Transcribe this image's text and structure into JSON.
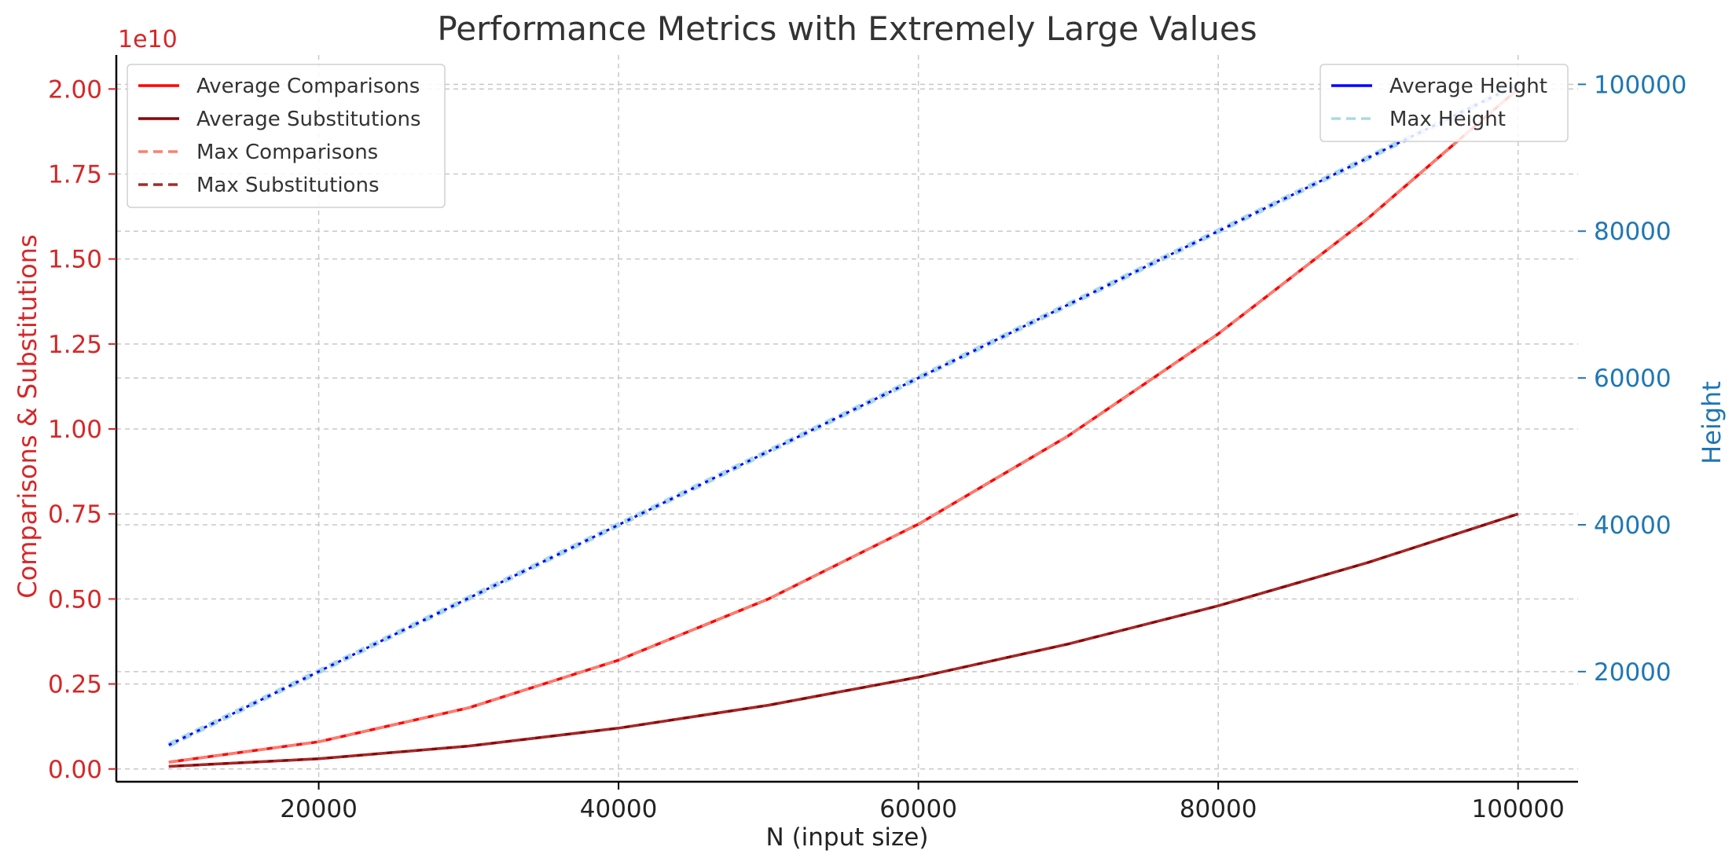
{
  "chart_data": {
    "type": "line",
    "title": "Performance Metrics with Extremely Large Values",
    "xlabel": "N (input size)",
    "ylabel_left": "Comparisons & Substitutions",
    "ylabel_right": "Height",
    "left_axis_multiplier": "1e10",
    "xlim": [
      6500,
      104000
    ],
    "ylim_left": [
      -0.0375,
      2.1
    ],
    "ylim_right": [
      5000,
      104000
    ],
    "x_ticks": [
      20000,
      40000,
      60000,
      80000,
      100000
    ],
    "x_tick_labels": [
      "20000",
      "40000",
      "60000",
      "80000",
      "100000"
    ],
    "y_left_ticks": [
      0,
      0.25,
      0.5,
      0.75,
      1.0,
      1.25,
      1.5,
      1.75,
      2.0
    ],
    "y_left_tick_labels": [
      "0.00",
      "0.25",
      "0.50",
      "0.75",
      "1.00",
      "1.25",
      "1.50",
      "1.75",
      "2.00"
    ],
    "y_right_ticks": [
      20000,
      40000,
      60000,
      80000,
      100000
    ],
    "y_right_tick_labels": [
      "20000",
      "40000",
      "60000",
      "80000",
      "100000"
    ],
    "grid": true,
    "x": [
      10000,
      20000,
      30000,
      40000,
      50000,
      60000,
      70000,
      80000,
      90000,
      100000
    ],
    "series_left": [
      {
        "name": "Average Comparisons",
        "color": "#ff0000",
        "dash": "solid",
        "values": [
          0.02,
          0.08,
          0.18,
          0.32,
          0.5,
          0.72,
          0.98,
          1.28,
          1.62,
          2.0
        ]
      },
      {
        "name": "Average Substitutions",
        "color": "#8b0000",
        "dash": "solid",
        "values": [
          0.0075,
          0.03,
          0.0675,
          0.12,
          0.1875,
          0.27,
          0.3675,
          0.48,
          0.6075,
          0.75
        ]
      },
      {
        "name": "Max Comparisons",
        "color": "#fa8072",
        "dash": "dashed",
        "values": [
          0.02,
          0.08,
          0.18,
          0.32,
          0.5,
          0.72,
          0.98,
          1.28,
          1.62,
          2.0
        ]
      },
      {
        "name": "Max Substitutions",
        "color": "#a52a2a",
        "dash": "dashed",
        "values": [
          0.0075,
          0.03,
          0.0675,
          0.12,
          0.1875,
          0.27,
          0.3675,
          0.48,
          0.6075,
          0.75
        ]
      }
    ],
    "series_right": [
      {
        "name": "Average Height",
        "color": "#0000ff",
        "dash": "solid",
        "values": [
          10000,
          20000,
          30000,
          40000,
          50000,
          60000,
          70000,
          80000,
          90000,
          100000
        ]
      },
      {
        "name": "Max Height",
        "color": "#add8e6",
        "dash": "dashed",
        "values": [
          10000,
          20000,
          30000,
          40000,
          50000,
          60000,
          70000,
          80000,
          90000,
          100000
        ]
      }
    ],
    "legend_left_placement": "upper-left",
    "legend_right_placement": "upper-right",
    "colors": {
      "left_axis": "#d62728",
      "right_axis": "#1f77b4",
      "grid": "#c8c8c8",
      "text": "#333333"
    }
  }
}
